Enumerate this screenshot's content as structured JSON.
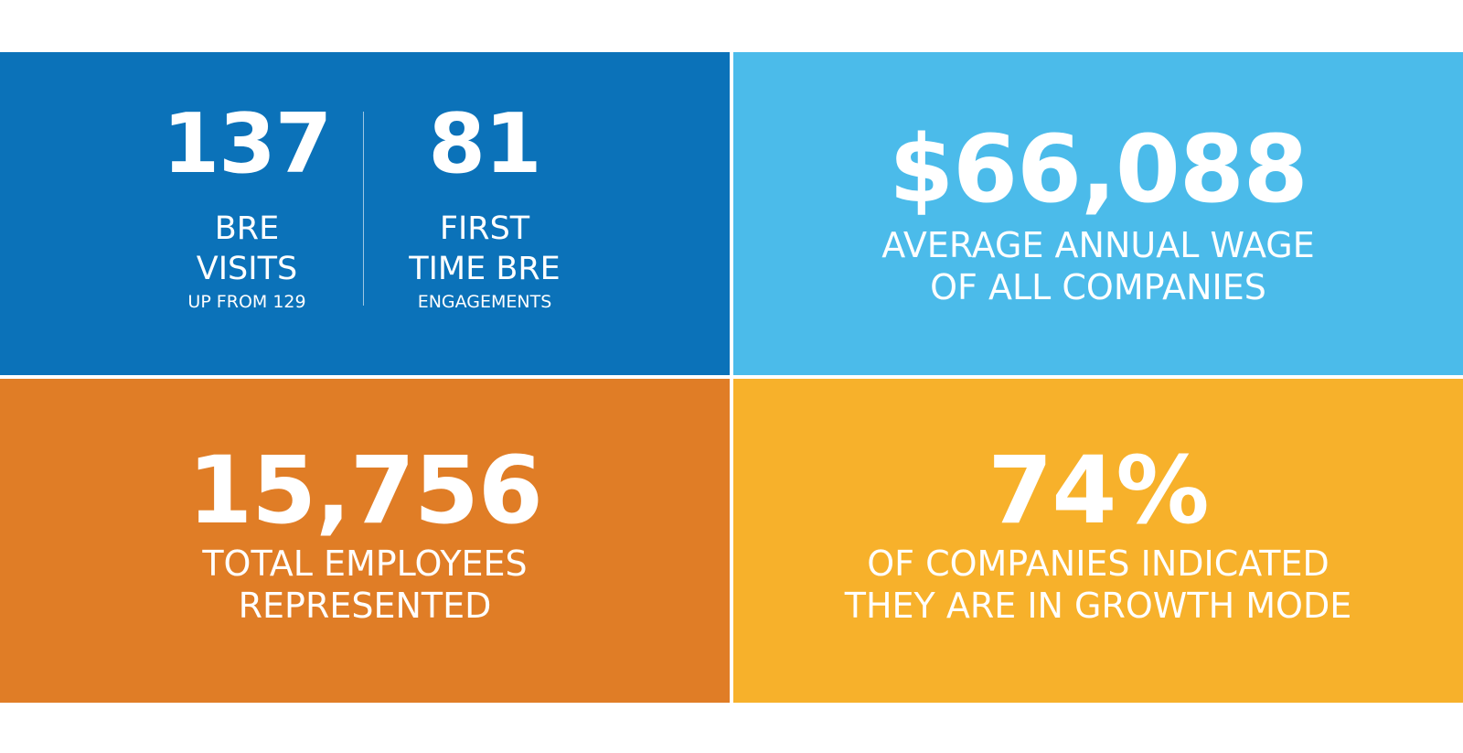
{
  "colors": {
    "tile_top_left": "#0b72b9",
    "tile_top_right": "#4bbbea",
    "tile_bottom_left": "#e07d26",
    "tile_bottom_right": "#f7b12b",
    "text": "#ffffff"
  },
  "tiles": {
    "top_left": {
      "left": {
        "number": "137",
        "line1": "BRE",
        "line2": "VISITS",
        "sub": "UP FROM 129"
      },
      "right": {
        "number": "81",
        "line1": "FIRST",
        "line2": "TIME BRE",
        "sub": "ENGAGEMENTS"
      }
    },
    "top_right": {
      "number": "$66,088",
      "line1": "AVERAGE ANNUAL WAGE",
      "line2": "OF ALL COMPANIES"
    },
    "bottom_left": {
      "number": "15,756",
      "line1": "TOTAL EMPLOYEES",
      "line2": "REPRESENTED"
    },
    "bottom_right": {
      "number": "74%",
      "line1": "OF COMPANIES INDICATED",
      "line2": "THEY ARE IN GROWTH MODE"
    }
  }
}
